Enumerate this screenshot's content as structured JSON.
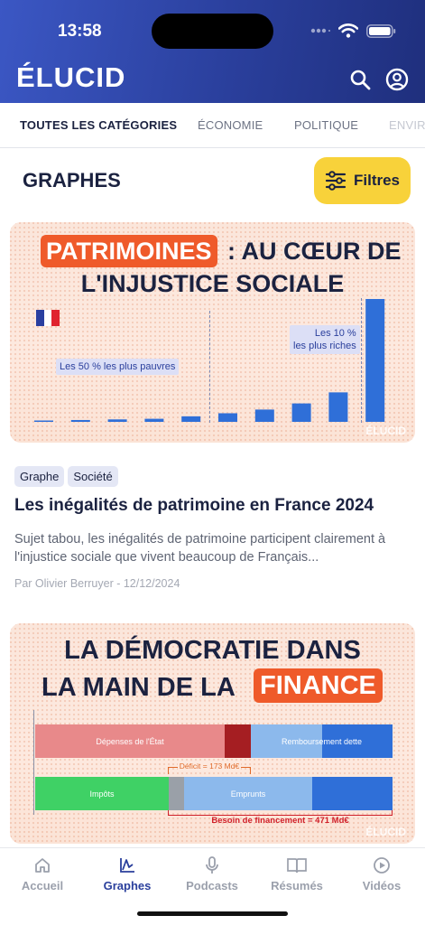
{
  "status": {
    "time": "13:58"
  },
  "header": {
    "logo": "ÉLUCID"
  },
  "tabs": [
    "TOUTES LES CATÉGORIES",
    "ÉCONOMIE",
    "POLITIQUE",
    "ENVIRONNEMENT"
  ],
  "section": {
    "title": "GRAPHES",
    "filter_label": "Filtres"
  },
  "cards": [
    {
      "image": {
        "highlight": "PATRIMOINES",
        "title_rest": ": AU CŒUR DE",
        "title_line2": "L'INJUSTICE SOCIALE",
        "label_poor": "Les 50 % les plus pauvres",
        "label_rich_1": "Les 10 %",
        "label_rich_2": "les plus riches",
        "watermark": "ÉLUCID",
        "bar_values": [
          0.5,
          1.5,
          2,
          2.5,
          4.5,
          7,
          10,
          15,
          24,
          100
        ],
        "bar_color": "#2f6fd8",
        "flag_colors": [
          "#2a3fa0",
          "#ffffff",
          "#e0232f"
        ]
      },
      "tags": [
        "Graphe",
        "Société"
      ],
      "title": "Les inégalités de patrimoine en France 2024",
      "description": "Sujet tabou, les inégalités de patrimoine participent clairement à l'injustice sociale que vivent beaucoup de Français...",
      "meta": "Par Olivier Berruyer - 12/12/2024"
    },
    {
      "image": {
        "title_line1": "LA DÉMOCRATIE DANS",
        "title_line2_prefix": "LA MAIN DE LA",
        "highlight": "FINANCE",
        "row1_left": "Dépenses de l'État",
        "row1_right": "Remboursement dette",
        "deficit": "Déficit = 173 Md€",
        "row2_left": "Impôts",
        "row2_right": "Emprunts",
        "besoin": "Besoin de financement = 471 Md€",
        "watermark": "ÉLUCID"
      }
    }
  ],
  "bottom_nav": [
    {
      "label": "Accueil",
      "icon": "home-icon",
      "active": false
    },
    {
      "label": "Graphes",
      "icon": "chart-icon",
      "active": true
    },
    {
      "label": "Podcasts",
      "icon": "microphone-icon",
      "active": false
    },
    {
      "label": "Résumés",
      "icon": "book-icon",
      "active": false
    },
    {
      "label": "Vidéos",
      "icon": "play-icon",
      "active": false
    }
  ],
  "colors": {
    "brand": "#2a3f9c",
    "accent_yellow": "#f8d23a",
    "highlight_orange": "#ef5a2a"
  }
}
